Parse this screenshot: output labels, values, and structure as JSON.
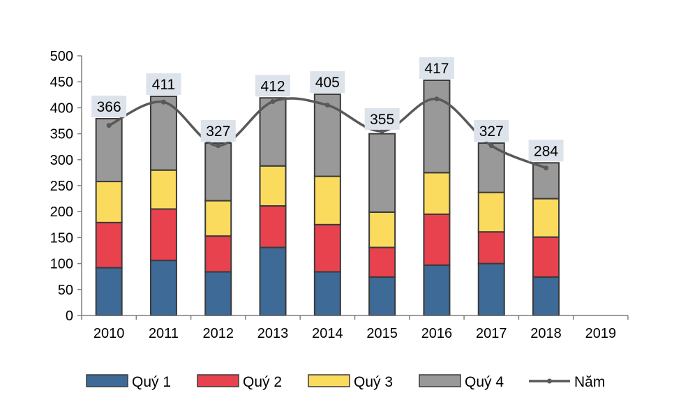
{
  "chart_data": {
    "type": "stacked-bar-with-line",
    "title": "",
    "xlabel": "",
    "ylabel": "",
    "categories": [
      "2010",
      "2011",
      "2012",
      "2013",
      "2014",
      "2015",
      "2016",
      "2017",
      "2018",
      "2019"
    ],
    "ylim": [
      0,
      500
    ],
    "yticks": [
      0,
      50,
      100,
      150,
      200,
      250,
      300,
      350,
      400,
      450,
      500
    ],
    "grid": false,
    "legend_position": "bottom",
    "series": [
      {
        "name": "Quý 1",
        "type": "bar",
        "color": "#3d6a96",
        "values": [
          92,
          106,
          84,
          131,
          84,
          74,
          97,
          100,
          74,
          null
        ]
      },
      {
        "name": "Quý 2",
        "type": "bar",
        "color": "#e9424f",
        "values": [
          87,
          99,
          69,
          80,
          91,
          57,
          98,
          61,
          77,
          null
        ]
      },
      {
        "name": "Quý 3",
        "type": "bar",
        "color": "#fbdb5e",
        "values": [
          79,
          75,
          68,
          77,
          93,
          68,
          80,
          76,
          74,
          null
        ]
      },
      {
        "name": "Quý 4",
        "type": "bar",
        "color": "#999999",
        "values": [
          121,
          142,
          111,
          131,
          158,
          151,
          178,
          95,
          69,
          null
        ]
      },
      {
        "name": "Năm",
        "type": "line",
        "color": "#595959",
        "values": [
          366,
          411,
          327,
          412,
          405,
          355,
          417,
          327,
          284,
          null
        ],
        "data_labels": [
          "366",
          "411",
          "327",
          "412",
          "405",
          "355",
          "417",
          "327",
          "284"
        ]
      }
    ]
  }
}
